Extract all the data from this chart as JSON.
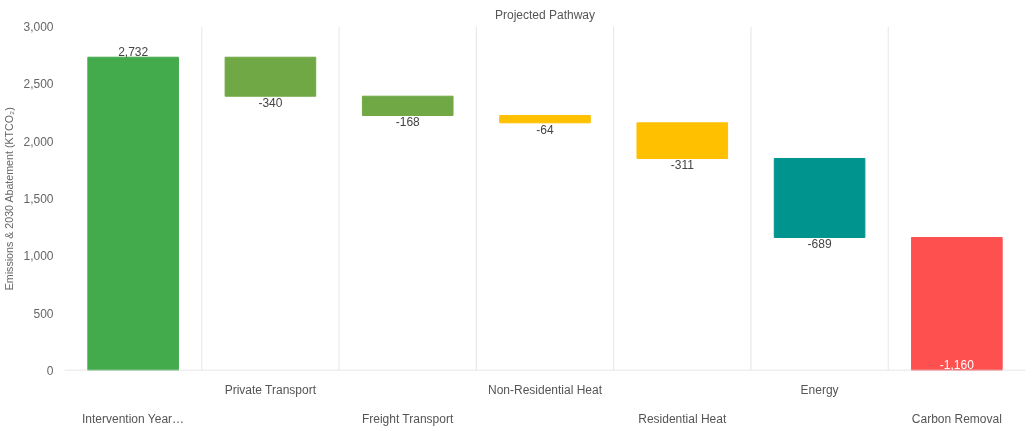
{
  "chart_data": {
    "type": "bar",
    "title": "Projected Pathway",
    "ylabel": "Emissions & 2030 Abatement (KTCO₂)",
    "categories": [
      "Intervention Year…",
      "Private Transport",
      "Freight Transport",
      "Non-Residential Heat",
      "Residential Heat",
      "Energy",
      "Carbon Removal"
    ],
    "values": [
      2732,
      -340,
      -168,
      -64,
      -311,
      -689,
      -1160
    ],
    "base": [
      0,
      2732,
      2392,
      2224,
      2160,
      1849,
      1160
    ],
    "colors": [
      "#43ab4c",
      "#70a845",
      "#70a845",
      "#ffc000",
      "#ffc000",
      "#00948f",
      "#ff5050"
    ],
    "value_labels": [
      "2,732",
      "-340",
      "-168",
      "-64",
      "-311",
      "-689",
      "-1,160"
    ],
    "ylim": [
      0,
      3000
    ],
    "yticks": [
      0,
      500,
      {
        "value": 1000,
        "label": "1,000"
      },
      {
        "value": 1500,
        "label": "1,500"
      },
      {
        "value": 2000,
        "label": "2,000"
      },
      {
        "value": 2500,
        "label": "2,500"
      },
      {
        "value": 3000,
        "label": "3,000"
      }
    ],
    "grid": "x"
  }
}
